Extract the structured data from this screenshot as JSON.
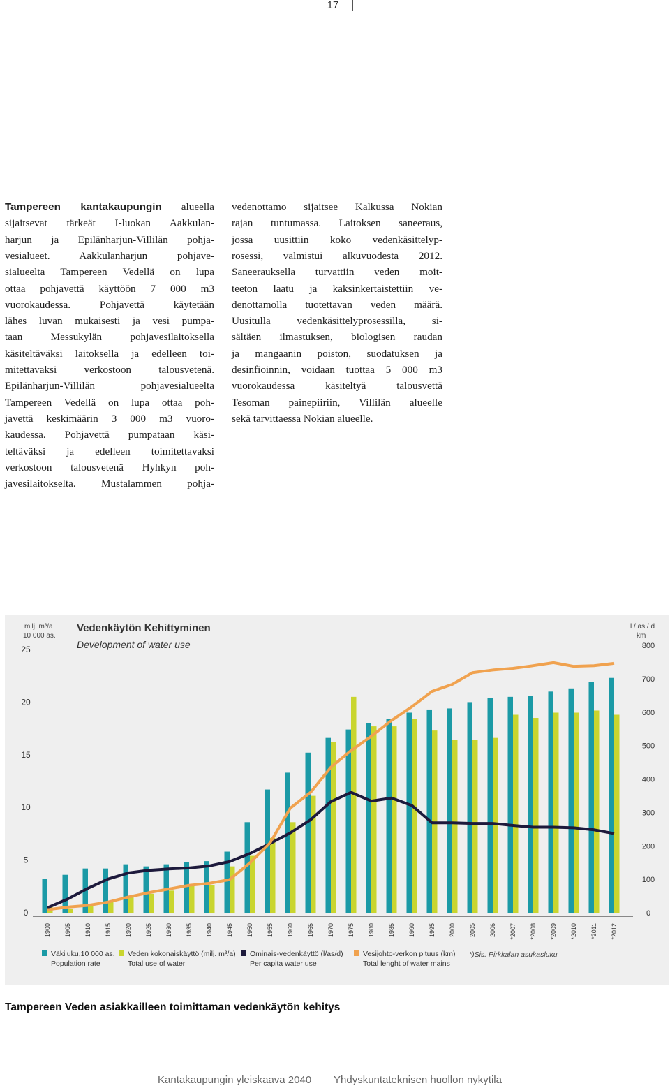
{
  "page_number": "17",
  "columns": [
    {
      "lead": "Tampereen kantakaupungin",
      "lines": [
        "alueella",
        "sijaitsevat tärkeät I-luokan Aakkulan-",
        "harjun ja Epilänharjun-Villilän pohja-",
        "vesialueet. Aakkulanharjun pohjave-",
        "sialueelta Tampereen Vedellä on lupa",
        "ottaa pohjavettä käyttöön 7 000 m3",
        "vuorokaudessa. Pohjavettä käytetään",
        "lähes luvan mukaisesti ja vesi pumpa-",
        "taan Messukylän pohjavesilaitoksella",
        "käsiteltäväksi laitoksella ja edelleen toi-",
        "mitettavaksi verkostoon talousvetenä.",
        "Epilänharjun-Villilän pohjavesialueelta",
        "Tampereen Vedellä on lupa ottaa poh-",
        "javettä keskimäärin 3 000 m3 vuoro-",
        "kaudessa. Pohjavettä pumpataan käsi-",
        "teltäväksi ja edelleen toimitettavaksi",
        "verkostoon talousvetenä Hyhkyn poh-",
        "javesilaitokselta. Mustalammen pohja-"
      ]
    },
    {
      "lines": [
        "vedenottamo sijaitsee Kalkussa Nokian",
        "rajan tuntumassa. Laitoksen saneeraus,",
        "jossa uusittiin koko vedenkäsittelyp-",
        "rosessi, valmistui alkuvuodesta 2012.",
        "Saneerauksella turvattiin veden moit-",
        "teeton laatu ja kaksinkertaistettiin ve-",
        "denottamolla tuotettavan veden määrä.",
        "Uusitulla vedenkäsittelyprosessilla, si-",
        "sältäen ilmastuksen, biologisen raudan",
        "ja mangaanin poiston, suodatuksen ja",
        "desinfioinnin, voidaan tuottaa 5 000 m3",
        "vuorokaudessa käsiteltyä talousvettä",
        "Tesoman painepiiriin, Villilän alueelle",
        "sekä tarvittaessa Nokian alueelle."
      ]
    }
  ],
  "chart_data": {
    "type": "bar",
    "title": "Vedenkäytön Kehittyminen",
    "subtitle": "Development of water use",
    "ylabel": [
      "milj. m³/a",
      "10 000 as."
    ],
    "y2label": [
      "l / as / d",
      "km"
    ],
    "categories": [
      "1900",
      "1905",
      "1910",
      "1915",
      "1920",
      "1925",
      "1930",
      "1935",
      "1940",
      "1945",
      "1950",
      "1955",
      "1960",
      "1965",
      "1970",
      "1975",
      "1980",
      "1985",
      "1990",
      "1995",
      "2000",
      "2005",
      "2006",
      "*2007",
      "*2008",
      "*2009",
      "*2010",
      "*2011",
      "*2012"
    ],
    "ylim": [
      0,
      25
    ],
    "yticks": [
      0,
      5,
      10,
      15,
      20,
      25
    ],
    "y2lim": [
      0,
      800
    ],
    "y2ticks": [
      0,
      100,
      200,
      300,
      400,
      500,
      600,
      700,
      800
    ],
    "series": [
      {
        "name": "Väkiluku,10 000 as.",
        "name_en": "Population rate",
        "type": "bar",
        "color": "#1b9aa6",
        "values": [
          3.2,
          3.6,
          4.2,
          4.2,
          4.6,
          4.4,
          4.6,
          4.8,
          4.9,
          5.8,
          8.6,
          11.7,
          13.3,
          15.2,
          16.6,
          17.4,
          18.0,
          18.4,
          19.0,
          19.3,
          19.4,
          20.0,
          20.4,
          20.5,
          20.6,
          21.0,
          21.3,
          21.9,
          22.3
        ]
      },
      {
        "name": "Veden kokonaiskäyttö (milj. m³/a)",
        "name_en": "Total use of water",
        "type": "bar",
        "color": "#c9d52f",
        "values": [
          0.6,
          0.4,
          0.8,
          1.1,
          1.5,
          1.8,
          2.1,
          2.6,
          2.6,
          4.4,
          5.4,
          7.1,
          8.6,
          11.1,
          16.2,
          20.5,
          17.7,
          17.7,
          18.4,
          17.3,
          16.4,
          16.4,
          16.6,
          18.8,
          18.5,
          19.0,
          19.0,
          19.2,
          18.8
        ]
      },
      {
        "name": "Ominais-vedenkäyttö (l/as/d)",
        "name_en": "Per capita water use",
        "type": "line",
        "axis": "y2",
        "color": "#1d1a3c",
        "values": [
          15,
          41,
          73,
          101,
          119,
          127,
          131,
          134,
          140,
          153,
          177,
          207,
          239,
          278,
          332,
          360,
          334,
          343,
          321,
          269,
          269,
          267,
          267,
          261,
          256,
          256,
          254,
          248,
          237
        ]
      },
      {
        "name": "Vesijohto-verkon pituus (km)",
        "name_en": "Total lenght of water mains",
        "type": "line",
        "axis": "y2",
        "color": "#f0a24f",
        "values": [
          9,
          17,
          22,
          32,
          47,
          60,
          71,
          82,
          88,
          99,
          149,
          209,
          313,
          360,
          435,
          485,
          528,
          575,
          616,
          662,
          683,
          718,
          726,
          731,
          739,
          748,
          737,
          739,
          746
        ]
      }
    ],
    "note": "*)Sis. Pirkkalan asukasluku"
  },
  "caption": "Tampereen Veden asiakkailleen toimittaman vedenkäytön kehitys",
  "footer": [
    "Kantakaupungin yleiskaava 2040",
    "Yhdyskuntateknisen huollon nykytila"
  ]
}
